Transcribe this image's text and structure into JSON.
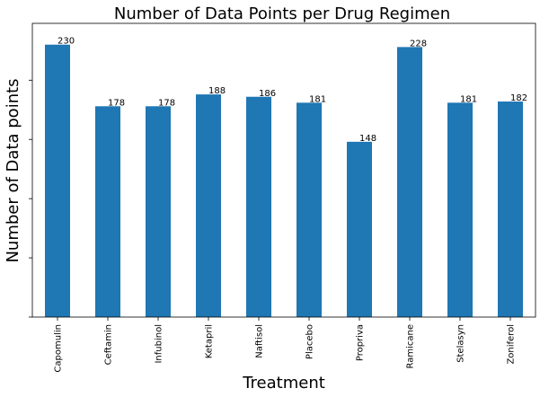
{
  "chart_data": {
    "type": "bar",
    "title": "Number of Data Points per Drug Regimen",
    "xlabel": "Treatment",
    "ylabel": "Number of Data points",
    "categories": [
      "Capomulin",
      "Ceftamin",
      "Infubinol",
      "Ketapril",
      "Naftisol",
      "Placebo",
      "Propriva",
      "Ramicane",
      "Stelasyn",
      "Zoniferol"
    ],
    "values": [
      230,
      178,
      178,
      188,
      186,
      181,
      148,
      228,
      181,
      182
    ],
    "data_labels": [
      "230",
      "178",
      "178",
      "188",
      "186",
      "181",
      "148",
      "228",
      "181",
      "182"
    ],
    "ylim": [
      0,
      248
    ],
    "y_tick_values": [
      0,
      50,
      100,
      150,
      200
    ],
    "y_tick_labels_visible": false,
    "grid": false,
    "legend": "none",
    "bar_color": "#1f77b4"
  }
}
